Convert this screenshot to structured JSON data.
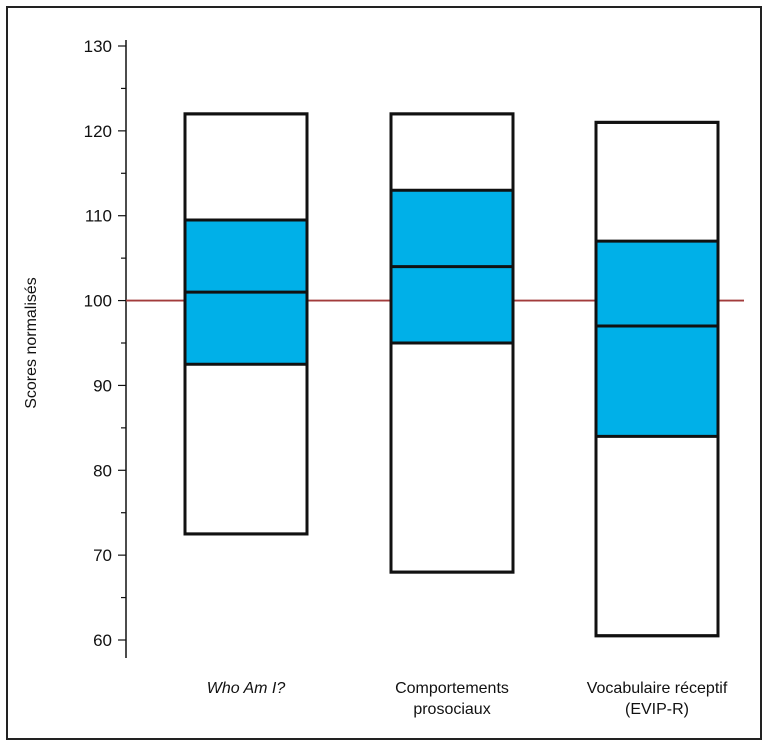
{
  "chart_data": {
    "type": "box",
    "ylabel": "Scores normalisés",
    "ylim": [
      60,
      130
    ],
    "yticks": [
      "60",
      "70",
      "80",
      "90",
      "100",
      "110",
      "120",
      "130"
    ],
    "reference_line": {
      "y": 100,
      "color": "#a23b3b"
    },
    "box_fill": "#00b0e8",
    "categories": [
      {
        "label_lines": [
          "Who Am I?"
        ],
        "italic": true,
        "min": 72.5,
        "q1": 92.5,
        "median": 101,
        "q3": 109.5,
        "max": 122
      },
      {
        "label_lines": [
          "Comportements",
          "prosociaux"
        ],
        "italic": false,
        "min": 68,
        "q1": 95,
        "median": 104,
        "q3": 113,
        "max": 122
      },
      {
        "label_lines": [
          "Vocabulaire réceptif",
          "(EVIP-R)"
        ],
        "italic": false,
        "min": 60.5,
        "q1": 84,
        "median": 97,
        "q3": 107,
        "max": 121
      }
    ]
  }
}
